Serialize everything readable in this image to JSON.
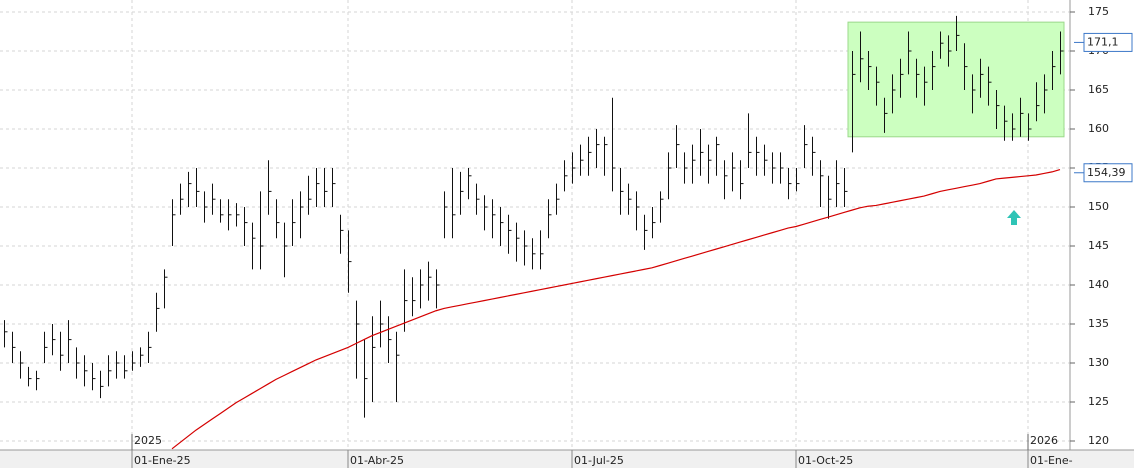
{
  "chart_data": {
    "type": "ohlc",
    "xlim": [
      -0.5,
      133
    ],
    "ylim": [
      120,
      175
    ],
    "yticks": [
      120,
      125,
      130,
      135,
      140,
      145,
      150,
      155,
      160,
      165,
      170,
      175
    ],
    "xticks": [
      {
        "value": 16,
        "label": "01-Ene-25"
      },
      {
        "value": 43,
        "label": "01-Abr-25"
      },
      {
        "value": 71,
        "label": "01-Jul-25"
      },
      {
        "value": 99,
        "label": "01-Oct-25"
      },
      {
        "value": 128,
        "label": "01-Ene-"
      }
    ],
    "year_marks": [
      {
        "value": 16,
        "label": "2025"
      },
      {
        "value": 128,
        "label": "2026"
      }
    ],
    "grid": true,
    "bar_color": "#111111",
    "high": [
      135.5,
      134,
      131.5,
      129.5,
      129,
      134,
      135,
      134,
      135.5,
      132,
      131,
      130,
      129,
      131,
      131.5,
      131,
      131.5,
      132,
      134,
      139,
      142,
      151,
      153,
      154.5,
      155,
      152,
      153,
      151,
      151,
      150.5,
      150,
      148,
      152,
      156,
      151,
      148,
      151,
      152,
      154,
      155,
      155,
      155,
      149,
      147,
      138,
      133,
      136,
      138,
      136,
      134,
      142,
      141,
      142,
      143,
      142,
      152,
      155,
      154.5,
      155,
      153,
      151.5,
      151,
      150,
      149,
      148,
      147,
      146,
      147,
      151,
      153,
      156,
      157,
      158,
      159,
      160,
      159,
      164,
      155,
      153,
      152,
      149,
      150,
      152,
      157,
      160.5,
      157,
      158,
      160,
      158,
      159,
      156,
      157,
      156,
      162,
      159,
      158,
      157,
      157,
      155,
      155,
      160.5,
      159,
      156,
      154,
      156,
      155,
      170,
      172.5,
      170,
      168,
      164,
      167,
      169,
      172.5,
      169,
      168,
      170,
      172.5,
      172,
      174.5,
      171,
      167,
      169,
      168,
      165,
      163,
      162,
      164,
      162,
      166,
      167,
      170,
      172.5
    ],
    "low": [
      132,
      130,
      128,
      127,
      126.5,
      130,
      131,
      129,
      130,
      128,
      127,
      126.5,
      125.5,
      127,
      128,
      128,
      129,
      129.5,
      130,
      134,
      137,
      145,
      149,
      150,
      150,
      148,
      149,
      148,
      147,
      147.5,
      145,
      142,
      142,
      149,
      146,
      141,
      145,
      146,
      149,
      150,
      150,
      150,
      144,
      139,
      128,
      123,
      125,
      132,
      130,
      125,
      134,
      136,
      137,
      138,
      137,
      146,
      146,
      149,
      151,
      149,
      147,
      146,
      145,
      144,
      143,
      142.5,
      142,
      142,
      146,
      149,
      152,
      153,
      154,
      154,
      155,
      154,
      152,
      149,
      149,
      147,
      144.5,
      146,
      148,
      151,
      155,
      153,
      153,
      154,
      153,
      154,
      151,
      152,
      151,
      155,
      154,
      154,
      153,
      153,
      151,
      152,
      155,
      154,
      150,
      148.5,
      150,
      150,
      157,
      166,
      165,
      163,
      159.5,
      162,
      164,
      167,
      164,
      163,
      165,
      169,
      168,
      170,
      165,
      162,
      164,
      163,
      160,
      158.5,
      158.5,
      159,
      158.5,
      161,
      162,
      165,
      167
    ],
    "close": [
      134,
      132,
      130,
      128,
      128,
      132,
      133,
      131,
      133,
      130,
      129,
      128,
      127,
      129,
      130,
      129,
      130,
      131,
      132,
      137,
      141,
      149,
      151,
      153,
      152,
      150,
      151,
      149,
      149,
      149,
      148,
      146,
      145,
      152,
      148,
      145,
      148,
      150,
      151,
      153,
      152,
      153,
      147,
      143,
      135,
      128,
      132,
      135,
      133,
      131,
      138,
      138,
      140,
      141,
      140,
      150,
      149,
      152,
      154,
      151,
      150,
      149,
      148,
      147,
      146,
      145,
      144,
      144,
      149,
      151,
      154,
      155,
      156,
      157,
      158,
      158,
      155,
      152,
      151,
      150,
      147,
      148,
      151,
      155,
      158,
      155,
      156,
      157,
      156,
      158,
      154,
      155,
      153,
      157,
      157,
      156,
      155,
      155,
      153,
      153,
      158,
      157,
      154,
      151,
      153,
      152,
      167,
      169,
      168,
      166,
      162,
      165,
      167,
      170,
      167,
      166,
      168,
      171,
      170,
      172,
      168,
      165,
      167,
      166,
      163,
      161,
      160,
      162,
      160,
      163,
      165,
      168,
      170
    ],
    "moving_average": {
      "color": "#d40000",
      "values": [
        null,
        null,
        null,
        null,
        null,
        null,
        null,
        null,
        null,
        null,
        null,
        null,
        null,
        null,
        null,
        null,
        null,
        null,
        null,
        null,
        null,
        119,
        119.8,
        120.6,
        121.4,
        122.1,
        122.8,
        123.5,
        124.2,
        124.9,
        125.5,
        126.1,
        126.7,
        127.3,
        127.9,
        128.4,
        128.9,
        129.4,
        129.9,
        130.4,
        130.8,
        131.2,
        131.6,
        132,
        132.5,
        133,
        133.5,
        133.9,
        134.3,
        134.7,
        135.1,
        135.5,
        135.9,
        136.3,
        136.7,
        137,
        137.2,
        137.4,
        137.6,
        137.8,
        138,
        138.2,
        138.4,
        138.6,
        138.8,
        139,
        139.2,
        139.4,
        139.6,
        139.8,
        140,
        140.2,
        140.4,
        140.6,
        140.8,
        141,
        141.2,
        141.4,
        141.6,
        141.8,
        142,
        142.2,
        142.5,
        142.8,
        143.1,
        143.4,
        143.7,
        144,
        144.3,
        144.6,
        144.9,
        145.2,
        145.5,
        145.8,
        146.1,
        146.4,
        146.7,
        147,
        147.3,
        147.5,
        147.8,
        148.1,
        148.4,
        148.7,
        149,
        149.3,
        149.6,
        149.9,
        150.1,
        150.2,
        150.4,
        150.6,
        150.8,
        151,
        151.2,
        151.4,
        151.7,
        152,
        152.2,
        152.4,
        152.6,
        152.8,
        153,
        153.3,
        153.6,
        153.7,
        153.8,
        153.9,
        154,
        154.1,
        154.3,
        154.5,
        154.8
      ]
    },
    "range_box": {
      "x": [
        105.5,
        132.5
      ],
      "y": [
        159,
        173.7
      ],
      "color": "#ccffc0",
      "border": "#9bd88b"
    },
    "price_labels": [
      {
        "value": 171.1,
        "label": "171,1"
      },
      {
        "value": 154.39,
        "label": "154,39"
      }
    ]
  }
}
